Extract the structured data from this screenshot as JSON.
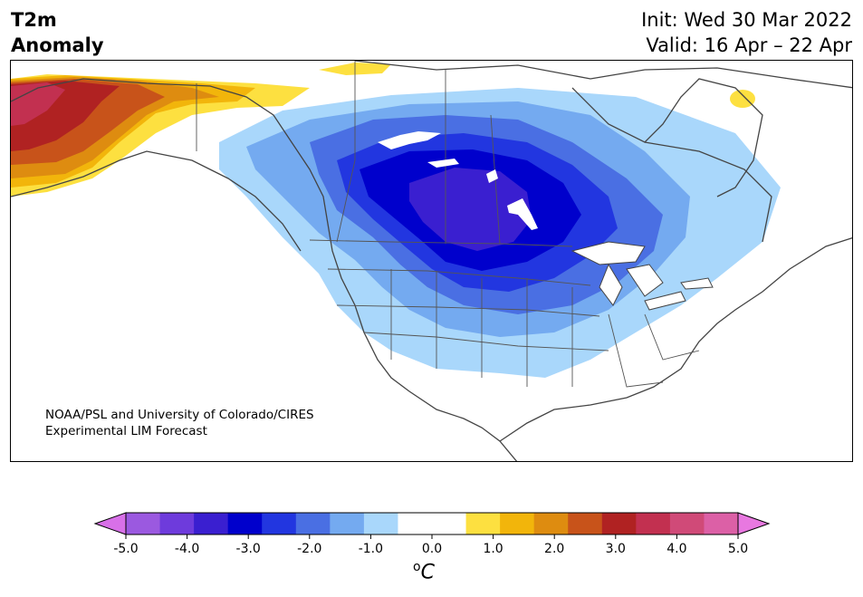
{
  "title": {
    "line1": "T2m",
    "line2": "Anomaly"
  },
  "dates": {
    "init": "Init: Wed 30 Mar 2022",
    "valid": "Valid: 16 Apr – 22 Apr"
  },
  "credit": {
    "line1": "NOAA/PSL and University of Colorado/CIRES",
    "line2": "Experimental LIM Forecast"
  },
  "colorbar": {
    "unit_super": "o",
    "unit_main": "C",
    "ticks": [
      "-5.0",
      "-4.0",
      "-3.0",
      "-2.0",
      "-1.0",
      "0.0",
      "1.0",
      "2.0",
      "3.0",
      "4.0",
      "5.0"
    ],
    "colors": [
      "#9b59e0",
      "#6e3bdc",
      "#3a1fd0",
      "#0000cc",
      "#2236e0",
      "#4a6fe3",
      "#74aaf0",
      "#a9d7fb",
      "#ffffff",
      "#ffffff",
      "#fde040",
      "#f2b50b",
      "#de8c10",
      "#c8531a",
      "#b02222",
      "#c23050",
      "#d04a78",
      "#dc60a6"
    ],
    "under_color": "#d870e8",
    "over_color": "#e878e0"
  }
}
